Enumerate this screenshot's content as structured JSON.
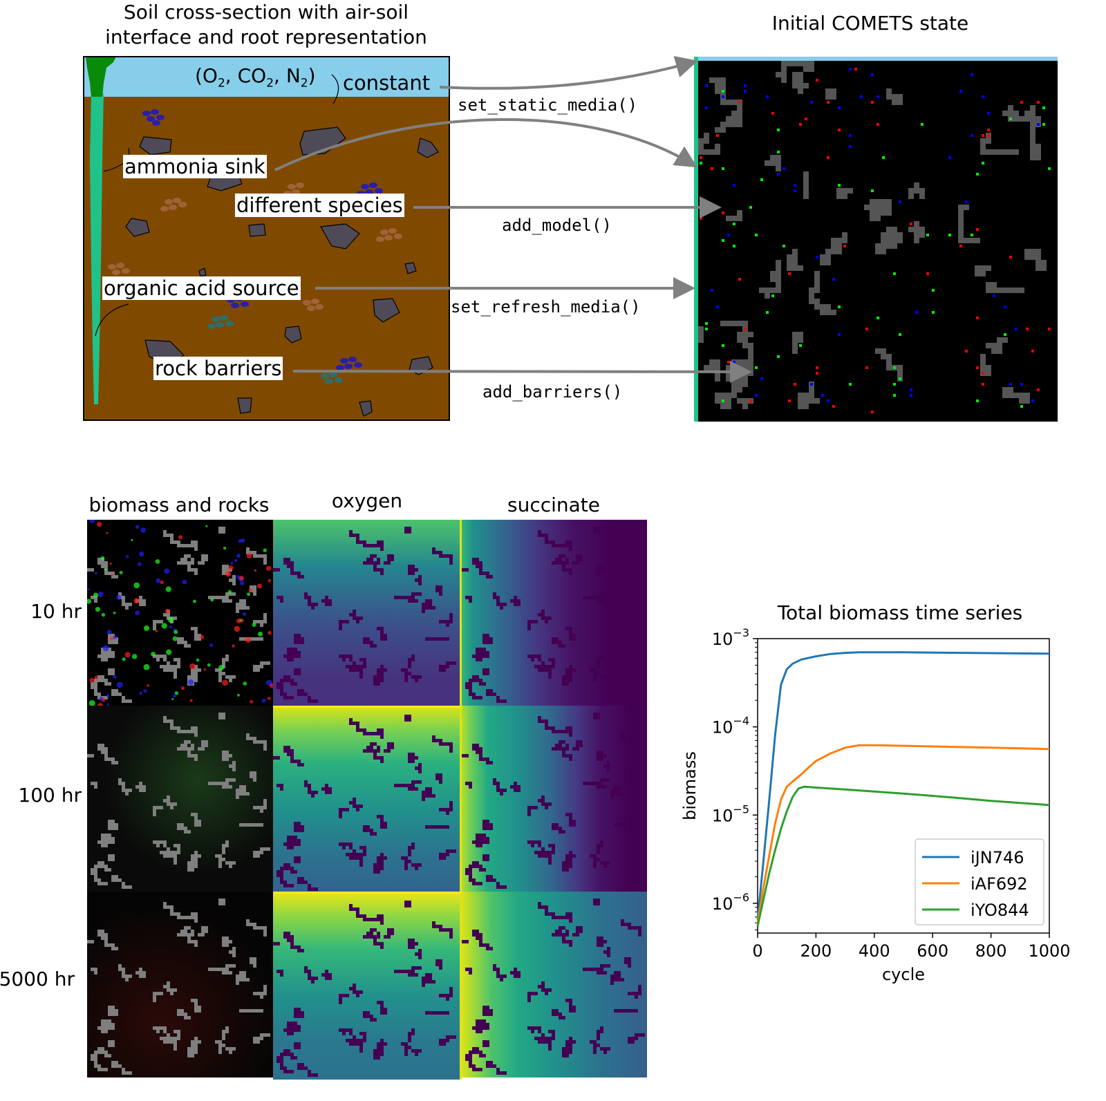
{
  "soil_panel": {
    "title_line1": "Soil cross-section with air-soil",
    "title_line2": "interface and root representation",
    "gases": "(O2, CO2, N2)",
    "gas_o": "(O",
    "gas_sub2": "2",
    "gas_co": ", CO",
    "gas_n": ", N",
    "gas_close": ")",
    "constant_label": "constant",
    "ammonia_label": "ammonia sink",
    "species_label": "different species",
    "organic_label": "organic acid source",
    "rock_label": "rock barriers"
  },
  "functions": {
    "static": "set_static_media()",
    "model": "add_model()",
    "refresh": "set_refresh_media()",
    "barriers": "add_barriers()"
  },
  "comets_panel": {
    "title": "Initial COMETS state"
  },
  "grid_panel": {
    "columns": [
      "biomass and rocks",
      "oxygen",
      "succinate"
    ],
    "rows": [
      "10 hr",
      "100 hr",
      "5000 hr"
    ]
  },
  "colors": {
    "sky": "#87ceeb",
    "soil": "#7f4a00",
    "root": "#1fc38a",
    "rock": "#4f4a57",
    "arrow": "#808080"
  },
  "chart_data": {
    "type": "line",
    "title": "Total biomass time series",
    "xlabel": "cycle",
    "ylabel": "biomass",
    "xlim": [
      0,
      1000
    ],
    "ylim": [
      4.6e-07,
      0.001
    ],
    "yscale": "log",
    "xticks": [
      "0",
      "200",
      "400",
      "600",
      "800",
      "1000"
    ],
    "yticks": [
      {
        "base": "10",
        "exp": "−3",
        "value": 0.001
      },
      {
        "base": "10",
        "exp": "−4",
        "value": 0.0001
      },
      {
        "base": "10",
        "exp": "−5",
        "value": 1e-05
      },
      {
        "base": "10",
        "exp": "−6",
        "value": 1e-06
      }
    ],
    "legend_position": "lower-right",
    "series": [
      {
        "name": "iJN746",
        "color": "#1f77b4",
        "x": [
          0,
          20,
          40,
          60,
          80,
          100,
          120,
          150,
          200,
          250,
          300,
          350,
          400,
          500,
          600,
          700,
          800,
          900,
          1000
        ],
        "y": [
          6.5e-07,
          3e-06,
          1.5e-05,
          8e-05,
          0.0003,
          0.00045,
          0.00052,
          0.00058,
          0.00063,
          0.00067,
          0.00069,
          0.0007,
          0.0007,
          0.0007,
          0.000695,
          0.00069,
          0.000685,
          0.00068,
          0.000675
        ]
      },
      {
        "name": "iAF692",
        "color": "#ff7f0e",
        "x": [
          0,
          20,
          40,
          60,
          80,
          100,
          120,
          150,
          180,
          200,
          250,
          300,
          350,
          400,
          500,
          600,
          700,
          800,
          900,
          1000
        ],
        "y": [
          6e-07,
          1.5e-06,
          3.5e-06,
          8e-06,
          1.5e-05,
          2.1e-05,
          2.4e-05,
          2.9e-05,
          3.6e-05,
          4.1e-05,
          5e-05,
          5.8e-05,
          6.2e-05,
          6.2e-05,
          6.1e-05,
          6e-05,
          5.9e-05,
          5.8e-05,
          5.7e-05,
          5.6e-05
        ]
      },
      {
        "name": "iYO844",
        "color": "#2ca02c",
        "x": [
          0,
          20,
          40,
          60,
          80,
          100,
          120,
          140,
          160,
          200,
          300,
          400,
          500,
          600,
          700,
          800,
          900,
          1000
        ],
        "y": [
          5.5e-07,
          1.1e-06,
          2.2e-06,
          4e-06,
          7e-06,
          1.1e-05,
          1.6e-05,
          2e-05,
          2.1e-05,
          2.05e-05,
          1.95e-05,
          1.85e-05,
          1.75e-05,
          1.65e-05,
          1.55e-05,
          1.45e-05,
          1.37e-05,
          1.3e-05
        ]
      }
    ]
  }
}
